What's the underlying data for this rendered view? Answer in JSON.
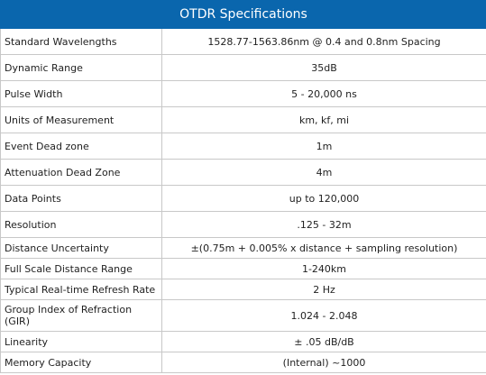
{
  "table": {
    "title": "OTDR Specifications",
    "rows": [
      {
        "label": "Standard Wavelengths",
        "value": "1528.77-1563.86nm @ 0.4 and 0.8nm Spacing"
      },
      {
        "label": "Dynamic Range",
        "value": "35dB"
      },
      {
        "label": "Pulse Width",
        "value": "5 - 20,000 ns"
      },
      {
        "label": "Units of Measurement",
        "value": "km, kf, mi"
      },
      {
        "label": "Event Dead zone",
        "value": "1m"
      },
      {
        "label": "Attenuation Dead Zone",
        "value": "4m"
      },
      {
        "label": "Data Points",
        "value": "up to 120,000"
      },
      {
        "label": "Resolution",
        "value": ".125 - 32m"
      },
      {
        "label": "Distance Uncertainty",
        "value": "±(0.75m + 0.005% x distance + sampling resolution)"
      },
      {
        "label": "Full Scale Distance Range",
        "value": "1-240km"
      },
      {
        "label": "Typical Real-time Refresh Rate",
        "value": "2 Hz"
      },
      {
        "label": "Group Index of Refraction (GIR)",
        "value": "1.024 - 2.048"
      },
      {
        "label": "Linearity",
        "value": "± .05 dB/dB"
      },
      {
        "label": "Memory Capacity",
        "value": "(Internal) ~1000"
      }
    ]
  },
  "colors": {
    "header_background": "#0a66ad",
    "header_text": "#ffffff",
    "border": "#c8c8c8"
  }
}
